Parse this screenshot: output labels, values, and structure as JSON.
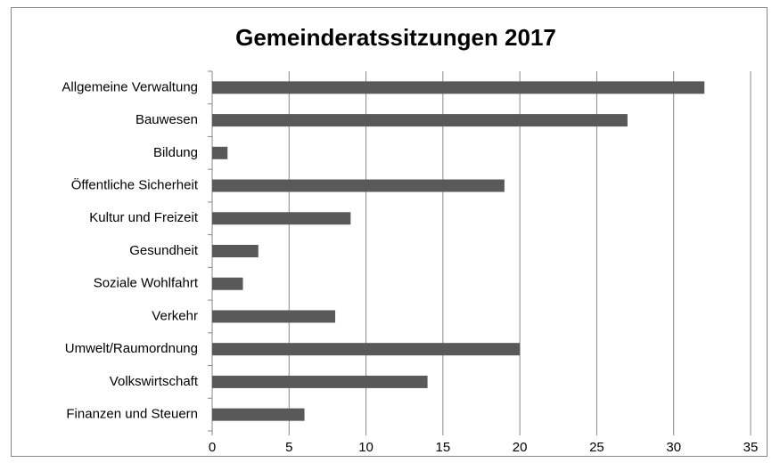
{
  "chart_data": {
    "type": "bar",
    "orientation": "horizontal",
    "title": "Gemeinderatssitzungen 2017",
    "categories": [
      "Allgemeine Verwaltung",
      "Bauwesen",
      "Bildung",
      "Öffentliche Sicherheit",
      "Kultur und Freizeit",
      "Gesundheit",
      "Soziale Wohlfahrt",
      "Verkehr",
      "Umwelt/Raumordnung",
      "Volkswirtschaft",
      "Finanzen und Steuern"
    ],
    "values": [
      32,
      27,
      1,
      19,
      9,
      3,
      2,
      8,
      20,
      14,
      6
    ],
    "color": "#595959",
    "xlim": [
      0,
      35
    ],
    "xticks": [
      0,
      5,
      10,
      15,
      20,
      25,
      30,
      35
    ],
    "grid": true
  }
}
